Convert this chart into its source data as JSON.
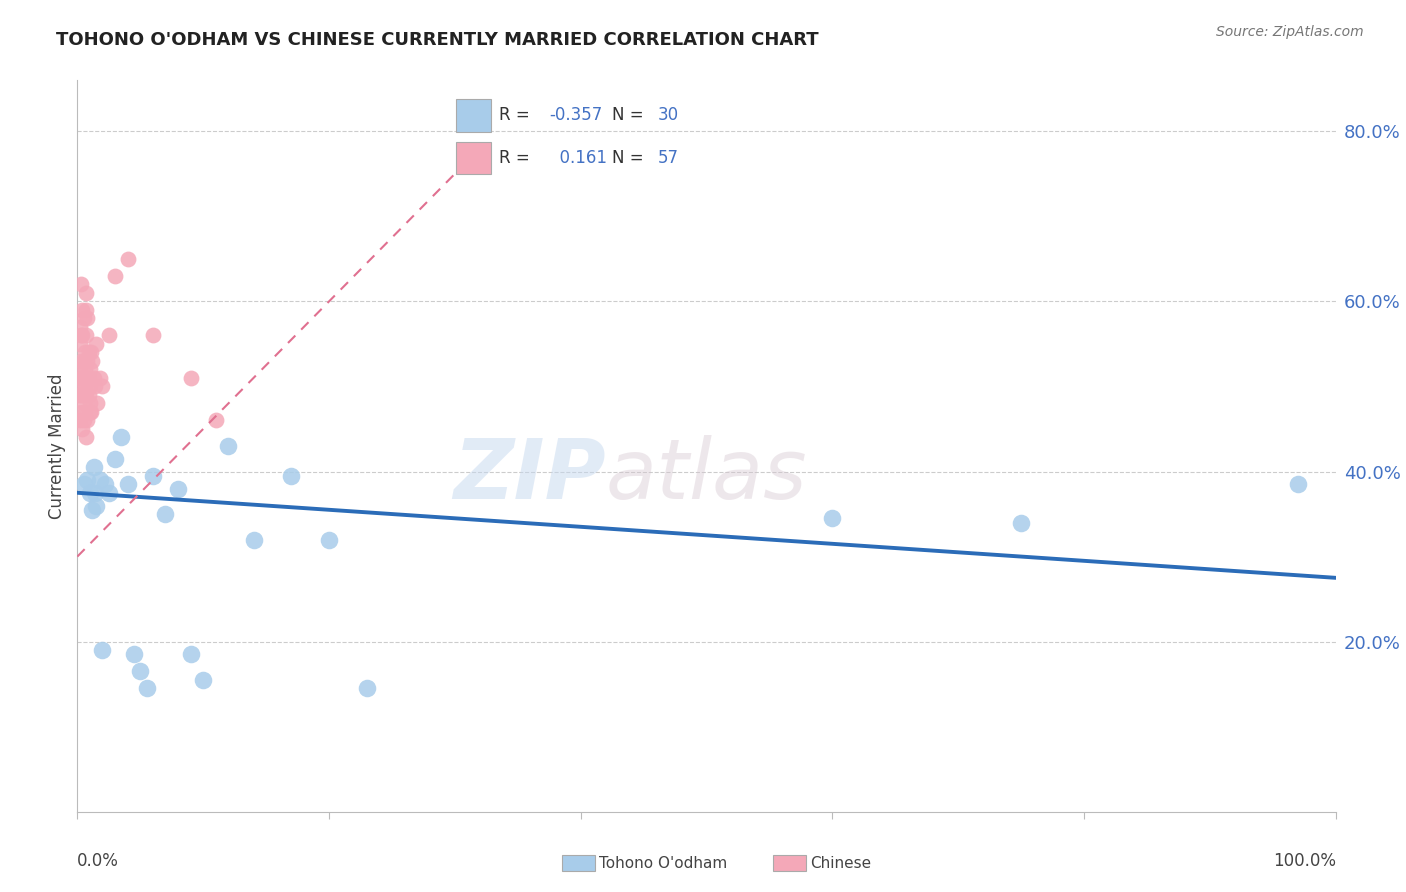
{
  "title": "TOHONO O'ODHAM VS CHINESE CURRENTLY MARRIED CORRELATION CHART",
  "source": "Source: ZipAtlas.com",
  "ylabel": "Currently Married",
  "xlim": [
    0.0,
    1.0
  ],
  "ylim": [
    0.0,
    0.86
  ],
  "legend_blue_R": "-0.357",
  "legend_blue_N": "30",
  "legend_pink_R": "0.161",
  "legend_pink_N": "57",
  "blue_color": "#A8CCEA",
  "pink_color": "#F4A8B8",
  "trend_blue_color": "#2B6CB8",
  "trend_pink_color": "#E07090",
  "watermark_zip": "ZIP",
  "watermark_atlas": "atlas",
  "blue_scatter_x": [
    0.005,
    0.008,
    0.01,
    0.012,
    0.013,
    0.014,
    0.015,
    0.018,
    0.02,
    0.022,
    0.025,
    0.03,
    0.035,
    0.04,
    0.045,
    0.05,
    0.055,
    0.06,
    0.07,
    0.08,
    0.09,
    0.1,
    0.12,
    0.14,
    0.17,
    0.2,
    0.23,
    0.6,
    0.75,
    0.97
  ],
  "blue_scatter_y": [
    0.385,
    0.39,
    0.375,
    0.355,
    0.405,
    0.375,
    0.36,
    0.39,
    0.19,
    0.385,
    0.375,
    0.415,
    0.44,
    0.385,
    0.185,
    0.165,
    0.145,
    0.395,
    0.35,
    0.38,
    0.185,
    0.155,
    0.43,
    0.32,
    0.395,
    0.32,
    0.145,
    0.345,
    0.34,
    0.385
  ],
  "pink_scatter_x": [
    0.001,
    0.001,
    0.001,
    0.002,
    0.002,
    0.002,
    0.002,
    0.003,
    0.003,
    0.003,
    0.003,
    0.003,
    0.004,
    0.004,
    0.004,
    0.004,
    0.004,
    0.005,
    0.005,
    0.005,
    0.005,
    0.005,
    0.006,
    0.006,
    0.006,
    0.006,
    0.007,
    0.007,
    0.007,
    0.007,
    0.007,
    0.007,
    0.008,
    0.008,
    0.008,
    0.009,
    0.009,
    0.009,
    0.01,
    0.01,
    0.01,
    0.01,
    0.011,
    0.011,
    0.012,
    0.013,
    0.014,
    0.015,
    0.016,
    0.018,
    0.02,
    0.025,
    0.03,
    0.04,
    0.06,
    0.09,
    0.11
  ],
  "pink_scatter_y": [
    0.5,
    0.52,
    0.49,
    0.55,
    0.57,
    0.46,
    0.51,
    0.56,
    0.49,
    0.53,
    0.47,
    0.62,
    0.59,
    0.45,
    0.51,
    0.56,
    0.49,
    0.53,
    0.46,
    0.58,
    0.51,
    0.48,
    0.54,
    0.47,
    0.52,
    0.5,
    0.61,
    0.59,
    0.44,
    0.51,
    0.56,
    0.49,
    0.53,
    0.46,
    0.58,
    0.51,
    0.49,
    0.54,
    0.47,
    0.52,
    0.5,
    0.48,
    0.54,
    0.47,
    0.53,
    0.51,
    0.5,
    0.55,
    0.48,
    0.51,
    0.5,
    0.56,
    0.63,
    0.65,
    0.56,
    0.51,
    0.46
  ],
  "trend_pink_x0": 0.0,
  "trend_pink_y0": 0.3,
  "trend_pink_x1": 0.3,
  "trend_pink_y1": 0.75,
  "trend_blue_x0": 0.0,
  "trend_blue_y0": 0.375,
  "trend_blue_x1": 1.0,
  "trend_blue_y1": 0.275
}
